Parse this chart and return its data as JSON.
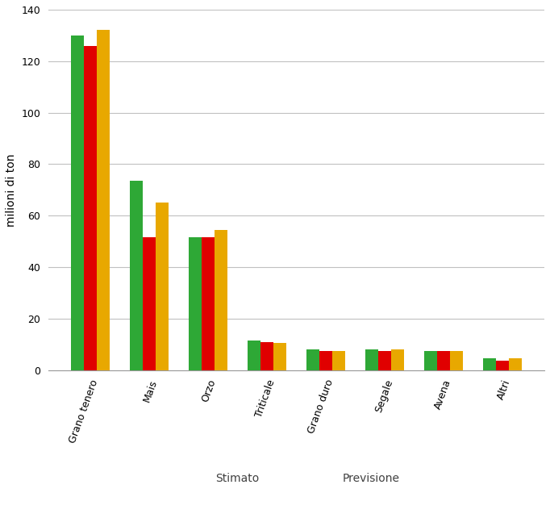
{
  "categories": [
    "Grano tenero",
    "Mais",
    "Orzo",
    "Triticale",
    "Grano duro",
    "Segale",
    "Avena",
    "Altri"
  ],
  "series": {
    "2021/22": [
      130,
      73.5,
      51.5,
      11.5,
      8.0,
      8.0,
      7.5,
      4.5
    ],
    "2022/23": [
      126,
      51.5,
      51.5,
      11.0,
      7.5,
      7.5,
      7.5,
      3.5
    ],
    "2023/24": [
      132,
      65,
      54.5,
      10.5,
      7.5,
      8.0,
      7.5,
      4.5
    ]
  },
  "colors": {
    "2021/22": "#2EA836",
    "2022/23": "#E00000",
    "2023/24": "#E8A800"
  },
  "ylabel": "milioni di ton",
  "ylim": [
    0,
    140
  ],
  "yticks": [
    0,
    20,
    40,
    60,
    80,
    100,
    120,
    140
  ],
  "legend_title_stimato": "Stimato",
  "legend_title_previsione": "Previsione",
  "bar_width": 0.22,
  "background_color": "#ffffff",
  "grid_color": "#c0c0c0",
  "tick_fontsize": 9,
  "ylabel_fontsize": 10,
  "legend_fontsize": 10
}
